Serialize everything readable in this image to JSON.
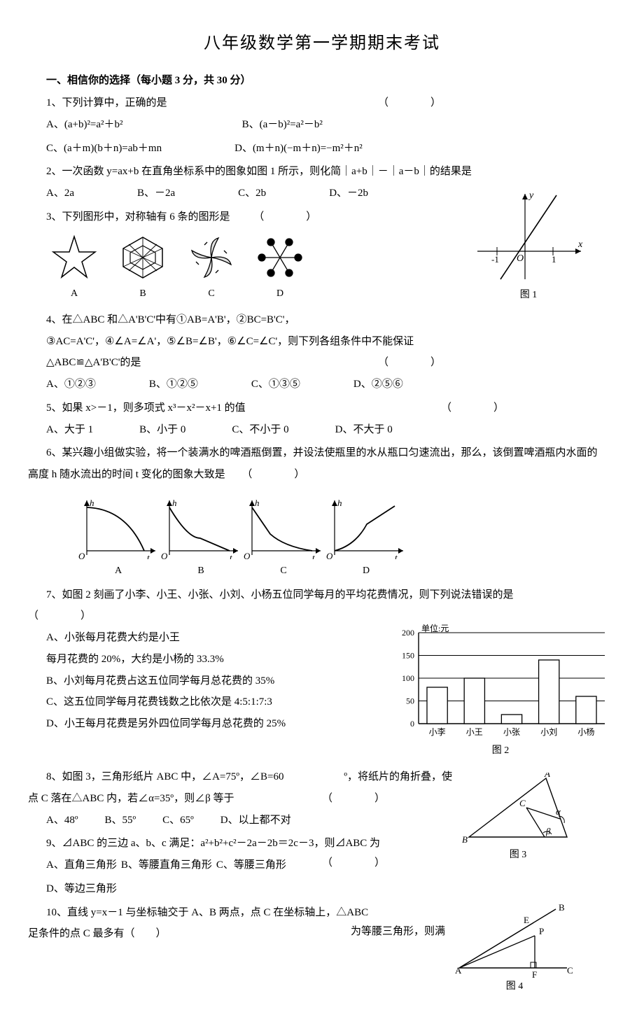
{
  "title": "八年级数学第一学期期末考试",
  "section1_head": "一、相信你的选择（每小题 3 分，共 30 分）",
  "paren_blank": "（　　）",
  "q1": {
    "stem": "1、下列计算中，正确的是",
    "A": "A、(a+b)²=a²＋b²",
    "B": "B、(a－b)²=a²－b²",
    "C": "C、(a＋m)(b＋n)=ab＋mn",
    "D": "D、(m＋n)(−m＋n)=−m²＋n²"
  },
  "q2": {
    "stem": "2、一次函数 y=ax+b 在直角坐标系中的图象如图 1 所示，则化简｜a+b｜－｜a－b｜的结果是",
    "A": "A、2a",
    "B": "B、－2a",
    "C": "C、2b",
    "D": "D、－2b"
  },
  "q3": {
    "stem": "3、下列图形中，对称轴有 6 条的图形是",
    "labels": {
      "A": "A",
      "B": "B",
      "C": "C",
      "D": "D"
    },
    "fig1_label": "图 1"
  },
  "q4": {
    "l1": "4、在△ABC 和△A'B'C'中有①AB=A'B'，②BC=B'C'，",
    "l2": "③AC=A'C'，④∠A=∠A'，⑤∠B=∠B'，⑥∠C=∠C'，则下列各组条件中不能保证",
    "l3": "△ABC≌△A'B'C'的是",
    "A": "A、①②③",
    "B": "B、①②⑤",
    "C": "C、①③⑤",
    "D": "D、②⑤⑥"
  },
  "q5": {
    "stem": "5、如果 x>－1，则多项式 x³－x²－x+1 的值",
    "A": "A、大于 1",
    "B": "B、小于 0",
    "C": "C、不小于 0",
    "D": "D、不大于 0"
  },
  "q6": {
    "l1": "6、某兴趣小组做实验，将一个装满水的啤酒瓶倒置，并设法使瓶里的水从瓶口匀速流出，那么，该倒置啤酒瓶内水面的",
    "l2": "高度 h 随水流出的时间 t 变化的图象大致是",
    "labels": {
      "A": "A",
      "B": "B",
      "C": "C",
      "D": "D"
    }
  },
  "q7": {
    "stem": "7、如图 2 刻画了小李、小王、小张、小刘、小杨五位同学每月的平均花费情况，则下列说法错误的是",
    "A1": "A、小张每月花费大约是小王",
    "A2": "每月花费的 20%，大约是小杨的 33.3%",
    "B": "B、小刘每月花费占这五位同学每月总花费的 35%",
    "C": "C、这五位同学每月花费钱数之比依次是 4:5:1:7:3",
    "D": "D、小王每月花费是另外四位同学每月总花费的 25%",
    "chart": {
      "unit": "单位:元",
      "y_ticks": [
        0,
        50,
        100,
        150,
        200
      ],
      "x_labels": [
        "小李",
        "小王",
        "小张",
        "小刘",
        "小杨"
      ],
      "values": [
        80,
        100,
        20,
        140,
        60
      ],
      "ylim": [
        0,
        200
      ],
      "bar_color": "#ffffff",
      "stroke": "#000000",
      "grid_color": "#000000"
    },
    "fig2_label": "图 2"
  },
  "q8": {
    "l1": "8、如图 3，三角形纸片 ABC 中，∠A=75º，∠B=60",
    "l1_tail": "º，将纸片的角折叠，使",
    "l2": "点 C 落在△ABC 内，若∠α=35º，则∠β 等于",
    "A": "A、48º",
    "B": "B、55º",
    "C": "C、65º",
    "D": "D、以上都不对",
    "fig3_label": "图 3"
  },
  "q9": {
    "stem": "9、⊿ABC 的三边 a、b、c 满足：a²+b²+c²－2a－2b＝2c－3，则⊿ABC 为",
    "A": "A、直角三角形",
    "B": "B、等腰直角三角形",
    "C": "C、等腰三角形",
    "D": "D、等边三角形"
  },
  "q10": {
    "l1": "10、直线 y=x－1 与坐标轴交于 A、B 两点，点 C 在坐标轴上，△ABC",
    "l1_tail": "为等腰三角形，则满",
    "l2": "足条件的点 C 最多有（　　）",
    "fig4_label": "图 4"
  }
}
